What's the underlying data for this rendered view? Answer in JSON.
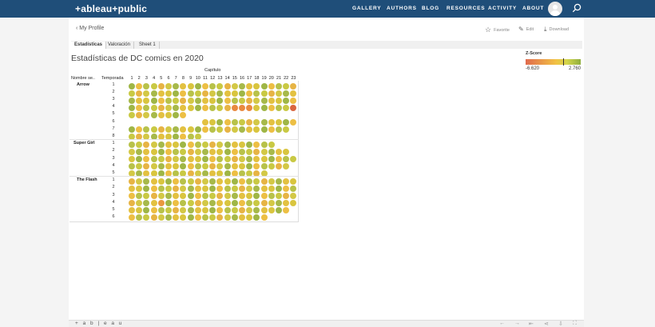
{
  "topnav": {
    "logo": "+ableau+public",
    "links": [
      "GALLERY",
      "AUTHORS",
      "BLOG",
      "RESOURCES",
      "ACTIVITY",
      "ABOUT"
    ]
  },
  "toolbar": {
    "back": "My Profile",
    "favorite": "Favorite",
    "edit": "Edit",
    "download": "Download"
  },
  "tabs": [
    "Estadísticas",
    "Valoración",
    "Sheet 1"
  ],
  "viz": {
    "title": "Estadísticas de DC comics en 2020",
    "col_header": "Capítulo",
    "row_header_1": "Nombre se..",
    "row_header_2": "Temporada",
    "legend": {
      "title": "Z-Score",
      "min": "-6.620",
      "max": "2.760"
    },
    "shows": [
      {
        "name": "Arrow",
        "seasons": [
          {
            "label": "1",
            "episodes": 23
          },
          {
            "label": "2",
            "episodes": 23
          },
          {
            "label": "3",
            "episodes": 23
          },
          {
            "label": "4",
            "episodes": 23
          },
          {
            "label": "5",
            "episodes": 8
          },
          {
            "label": "6",
            "episodes": 23,
            "start": 11
          },
          {
            "label": "7",
            "episodes": 22
          },
          {
            "label": "8",
            "episodes": 10
          }
        ]
      },
      {
        "name": "Super Girl",
        "seasons": [
          {
            "label": "1",
            "episodes": 20
          },
          {
            "label": "2",
            "episodes": 22
          },
          {
            "label": "3",
            "episodes": 23
          },
          {
            "label": "4",
            "episodes": 22
          },
          {
            "label": "5",
            "episodes": 19
          }
        ]
      },
      {
        "name": "The Flash",
        "seasons": [
          {
            "label": "1",
            "episodes": 23
          },
          {
            "label": "2",
            "episodes": 23
          },
          {
            "label": "3",
            "episodes": 23
          },
          {
            "label": "4",
            "episodes": 23
          },
          {
            "label": "5",
            "episodes": 22
          },
          {
            "label": "6",
            "episodes": 19
          }
        ]
      }
    ]
  },
  "footer": {
    "brand": "+ a b | e a u"
  },
  "colors": {
    "nav": "#1f4e79",
    "low": "#e06b4e",
    "mid": "#f2c144",
    "high": "#8fae3e"
  }
}
